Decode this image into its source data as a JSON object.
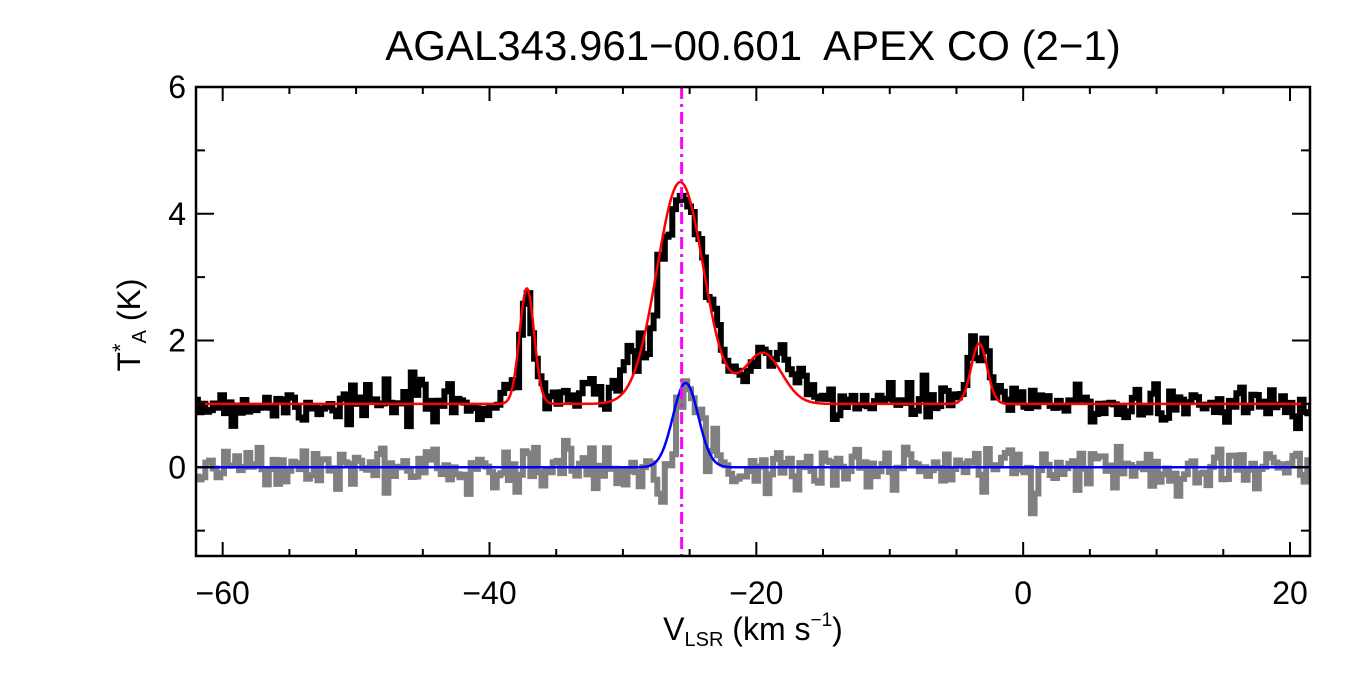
{
  "chart_data": {
    "type": "line",
    "title": "AGAL343.961−00.601  APEX CO (2−1)",
    "xlabel": {
      "main": "V",
      "sub": "LSR",
      "unit_pre": " (km s",
      "sup": "−1",
      "unit_post": ")"
    },
    "ylabel": {
      "main": "T",
      "sup": "*",
      "sub": "A",
      "unit": " (K)"
    },
    "xlim": [
      -62,
      21.5
    ],
    "ylim": [
      -1.4,
      6.0
    ],
    "x_ticks": [
      -60,
      -40,
      -20,
      0,
      20
    ],
    "x_tick_labels": [
      "−60",
      "−40",
      "−20",
      "0",
      "20"
    ],
    "y_ticks": [
      0,
      2,
      4,
      6
    ],
    "y_tick_labels": [
      "0",
      "2",
      "4",
      "6"
    ],
    "marker": {
      "type": "vertical-dash-dot",
      "x": -25.6,
      "color": "#ff00ff"
    },
    "series": [
      {
        "role": "observed spectrum (offset)",
        "style": "histogram",
        "color": "#000000",
        "baseline": 1.0,
        "x": [
          -60,
          -55,
          -50,
          -45,
          -40,
          -38,
          -37.2,
          -36,
          -32,
          -28,
          -27,
          -26,
          -25.5,
          -25,
          -24,
          -23,
          -22,
          -21,
          -19.5,
          -18,
          -15,
          -10,
          -5,
          -3.3,
          -2,
          0,
          5,
          10,
          15,
          21
        ],
        "y": [
          1.0,
          1.0,
          1.0,
          1.0,
          1.0,
          1.3,
          2.8,
          1.2,
          1.0,
          2.0,
          3.1,
          4.1,
          4.5,
          4.3,
          3.3,
          2.2,
          1.5,
          1.5,
          1.85,
          1.5,
          1.1,
          1.0,
          1.1,
          1.95,
          1.1,
          1.0,
          1.0,
          1.0,
          1.0,
          1.0
        ]
      },
      {
        "role": "multi-gaussian fit",
        "style": "line",
        "color": "#ff0000",
        "baseline": 1.0,
        "components": [
          {
            "amp": 1.82,
            "center": -37.2,
            "sigma": 0.55
          },
          {
            "amp": 3.5,
            "center": -25.7,
            "sigma": 1.75
          },
          {
            "amp": 0.8,
            "center": -19.5,
            "sigma": 1.4
          },
          {
            "amp": 0.95,
            "center": -3.3,
            "sigma": 0.6
          }
        ]
      },
      {
        "role": "residual spectrum",
        "style": "histogram",
        "color": "#808080",
        "baseline": 0.0,
        "x": [
          -60,
          -30,
          -27,
          -26,
          -25.4,
          -24.8,
          -24,
          -23,
          -20,
          0,
          21
        ],
        "y": [
          0.0,
          0.0,
          0.05,
          0.6,
          1.3,
          1.2,
          0.5,
          0.05,
          0.0,
          0.0,
          0.0
        ]
      },
      {
        "role": "single gaussian fit",
        "style": "line",
        "color": "#0000ff",
        "baseline": 0.0,
        "components": [
          {
            "amp": 1.33,
            "center": -25.3,
            "sigma": 0.95
          }
        ]
      }
    ]
  }
}
